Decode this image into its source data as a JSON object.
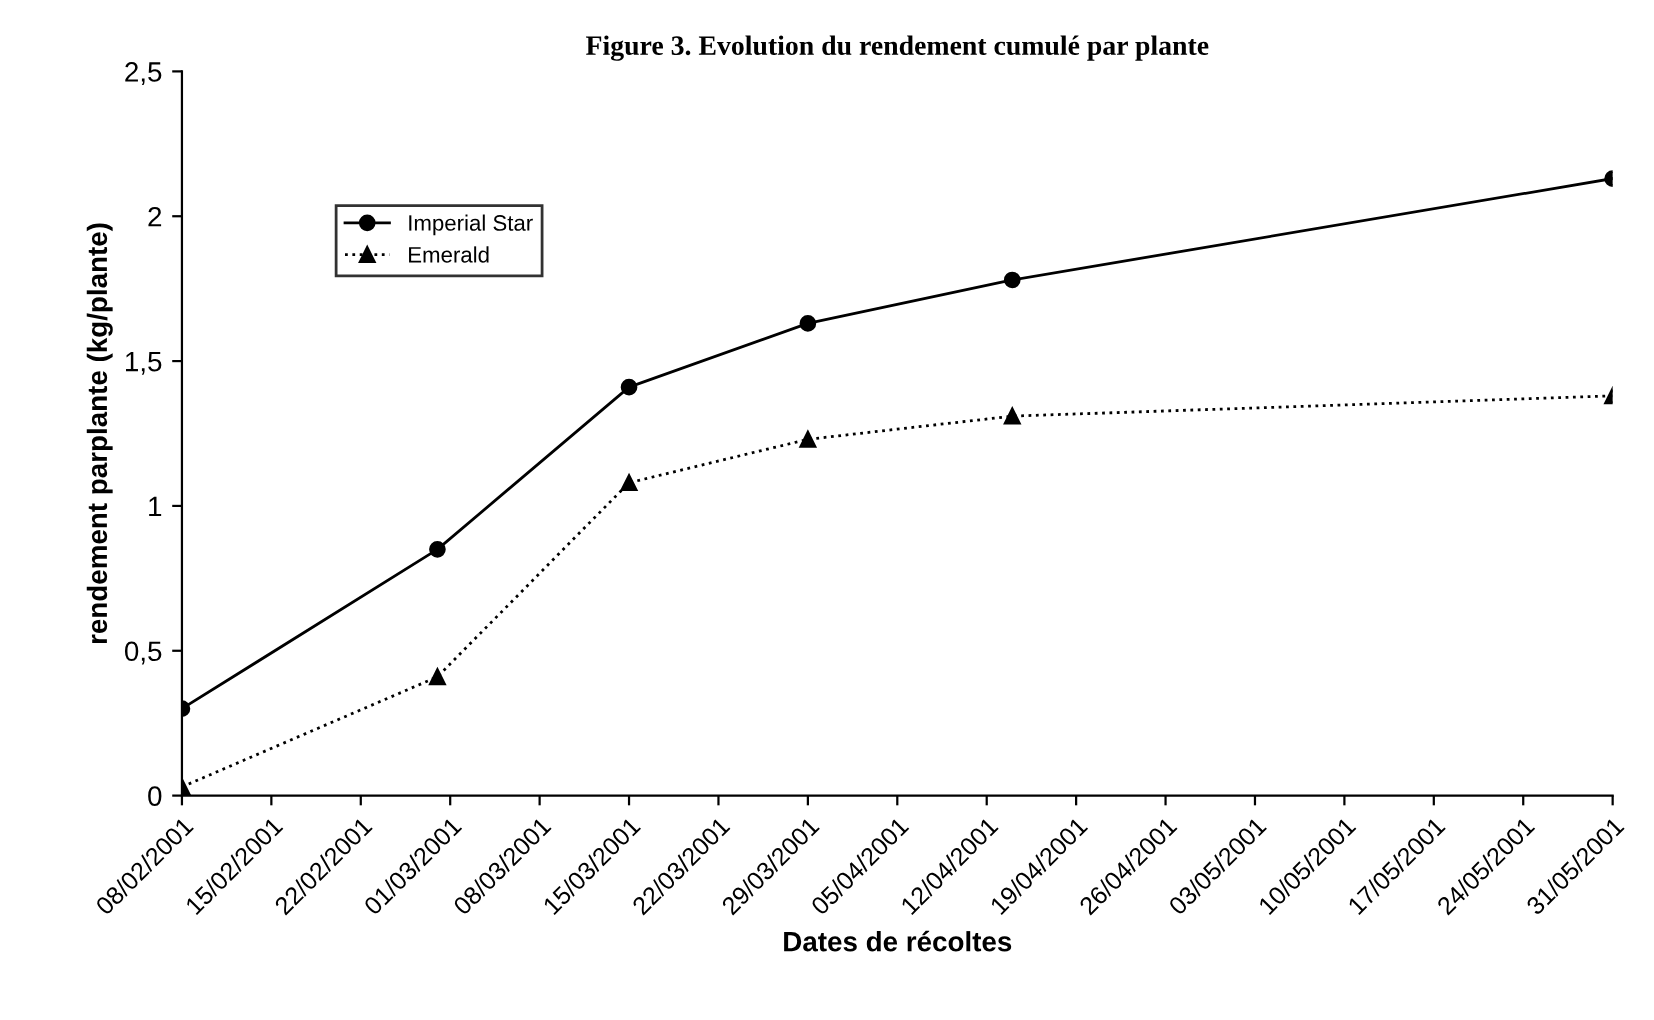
{
  "chart_data": {
    "type": "line",
    "title": "Figure 3. Evolution du rendement cumulé par plante",
    "xlabel": "Dates de récoltes",
    "ylabel": "rendement parplante (kg/plante)",
    "x": [
      "2001-02-08",
      "2001-02-28",
      "2001-03-15",
      "2001-03-29",
      "2001-04-14",
      "2001-05-31"
    ],
    "series": [
      {
        "name": "Imperial Star",
        "color": "#000000",
        "values": [
          0.3,
          0.85,
          1.41,
          1.63,
          1.78,
          2.13
        ],
        "marker": "circle",
        "line_style": "solid"
      },
      {
        "name": "Emerald",
        "color": "#000000",
        "values": [
          0.03,
          0.41,
          1.08,
          1.23,
          1.31,
          1.38
        ],
        "marker": "triangle",
        "line_style": "dotted"
      }
    ],
    "xlim": [
      "2001-02-08",
      "2001-05-31"
    ],
    "xticks": [
      {
        "value": "2001-02-08",
        "label": "08/02/2001"
      },
      {
        "value": "2001-02-15",
        "label": "15/02/2001"
      },
      {
        "value": "2001-02-22",
        "label": "22/02/2001"
      },
      {
        "value": "2001-03-01",
        "label": "01/03/2001"
      },
      {
        "value": "2001-03-08",
        "label": "08/03/2001"
      },
      {
        "value": "2001-03-15",
        "label": "15/03/2001"
      },
      {
        "value": "2001-03-22",
        "label": "22/03/2001"
      },
      {
        "value": "2001-03-29",
        "label": "29/03/2001"
      },
      {
        "value": "2001-04-05",
        "label": "05/04/2001"
      },
      {
        "value": "2001-04-12",
        "label": "12/04/2001"
      },
      {
        "value": "2001-04-19",
        "label": "19/04/2001"
      },
      {
        "value": "2001-04-26",
        "label": "26/04/2001"
      },
      {
        "value": "2001-05-03",
        "label": "03/05/2001"
      },
      {
        "value": "2001-05-10",
        "label": "10/05/2001"
      },
      {
        "value": "2001-05-17",
        "label": "17/05/2001"
      },
      {
        "value": "2001-05-24",
        "label": "24/05/2001"
      },
      {
        "value": "2001-05-31",
        "label": "31/05/2001"
      }
    ],
    "ylim": [
      0,
      2.5
    ],
    "yticks": [
      {
        "value": 0,
        "label": "0"
      },
      {
        "value": 0.5,
        "label": "0,5"
      },
      {
        "value": 1,
        "label": "1"
      },
      {
        "value": 1.5,
        "label": "1,5"
      },
      {
        "value": 2,
        "label": "2"
      },
      {
        "value": 2.5,
        "label": "2,5"
      }
    ],
    "grid": false,
    "legend": "top left"
  }
}
